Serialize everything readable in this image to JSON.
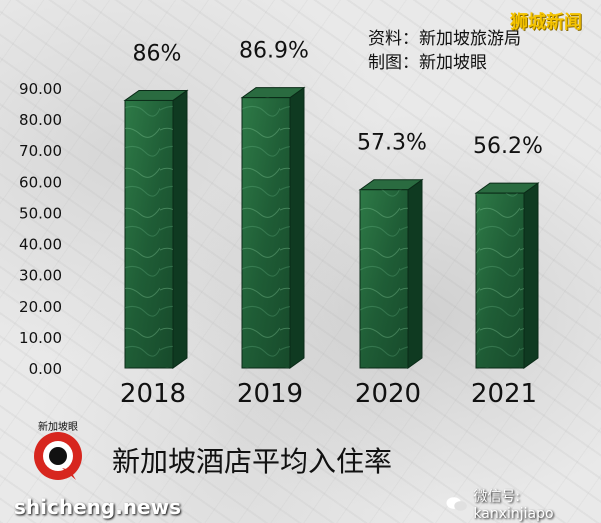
{
  "chart_data": {
    "type": "bar",
    "title": "新加坡酒店平均入住率",
    "categories": [
      "2018",
      "2019",
      "2020",
      "2021"
    ],
    "values": [
      86,
      86.9,
      57.3,
      56.2
    ],
    "data_labels": [
      "86%",
      "86.9%",
      "57.3%",
      "56.2%"
    ],
    "yticks": [
      "0.00",
      "10.00",
      "20.00",
      "30.00",
      "40.00",
      "50.00",
      "60.00",
      "70.00",
      "80.00",
      "90.00"
    ],
    "ylim": [
      0,
      90
    ],
    "xlabel": "",
    "ylabel": "",
    "grid": false,
    "bar_color": "#1d5a33"
  },
  "source": {
    "data_label": "资料：",
    "data_value": "新加坡旅游局",
    "chart_label": "制图：",
    "chart_value": "新加坡眼"
  },
  "watermark": "狮城新闻",
  "logo_text": "新加坡眼",
  "site": "shicheng.news",
  "wechat": "微信号: kanxinjiapo"
}
